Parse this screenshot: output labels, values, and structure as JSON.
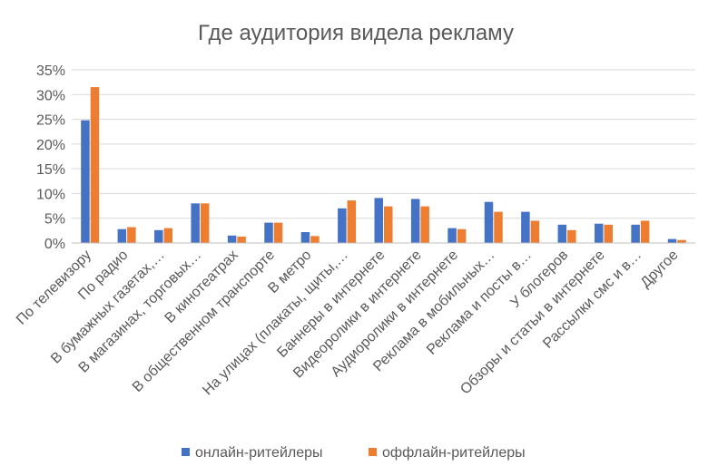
{
  "chart_data": {
    "type": "bar",
    "title": "Где аудитория видела рекламу",
    "xlabel": "",
    "ylabel": "",
    "ylim": [
      0,
      0.35
    ],
    "yticks": [
      "0%",
      "5%",
      "10%",
      "15%",
      "20%",
      "25%",
      "30%",
      "35%"
    ],
    "ytick_values": [
      0,
      0.05,
      0.1,
      0.15,
      0.2,
      0.25,
      0.3,
      0.35
    ],
    "grid": true,
    "legend_position": "bottom",
    "categories": [
      "По телевизору",
      "По радио",
      "В бумажных газетах,…",
      "В магазинах, торговых…",
      "В кинотеатрах",
      "В общественном транспорте",
      "В метро",
      "На улицах (плакаты, щиты,…",
      "Баннеры в интернете",
      "Видеоролики в интернете",
      "Аудиоролики в интернете",
      "Реклама в мобильных…",
      "Реклама и посты в…",
      "У блогеров",
      "Обзоры и статьи в интернете",
      "Рассылки смс и в…",
      "Другое"
    ],
    "series": [
      {
        "name": "онлайн-ритейлеры",
        "color": "#4472C4",
        "values": [
          0.248,
          0.028,
          0.026,
          0.08,
          0.015,
          0.041,
          0.022,
          0.07,
          0.091,
          0.089,
          0.03,
          0.083,
          0.063,
          0.037,
          0.039,
          0.037,
          0.008
        ]
      },
      {
        "name": "оффлайн-ритейлеры",
        "color": "#ED7D31",
        "values": [
          0.315,
          0.032,
          0.03,
          0.08,
          0.013,
          0.041,
          0.014,
          0.086,
          0.074,
          0.074,
          0.028,
          0.063,
          0.045,
          0.026,
          0.037,
          0.045,
          0.006
        ]
      }
    ]
  }
}
